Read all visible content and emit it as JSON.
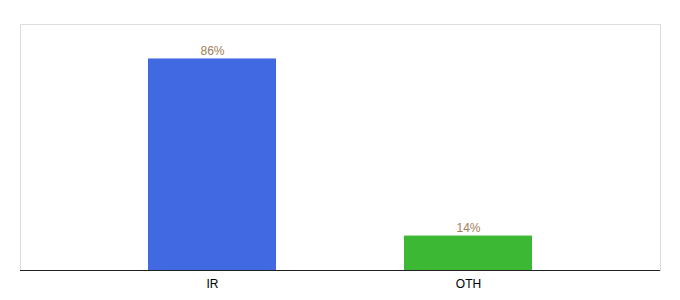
{
  "chart_data": {
    "type": "bar",
    "categories": [
      "IR",
      "OTH"
    ],
    "values": [
      86,
      14
    ],
    "colors": [
      "#4169e1",
      "#3cb835"
    ],
    "value_labels": [
      "86%",
      "14%"
    ],
    "data_labels": true,
    "ylim": [
      0,
      100
    ],
    "tick_labels": "x"
  }
}
